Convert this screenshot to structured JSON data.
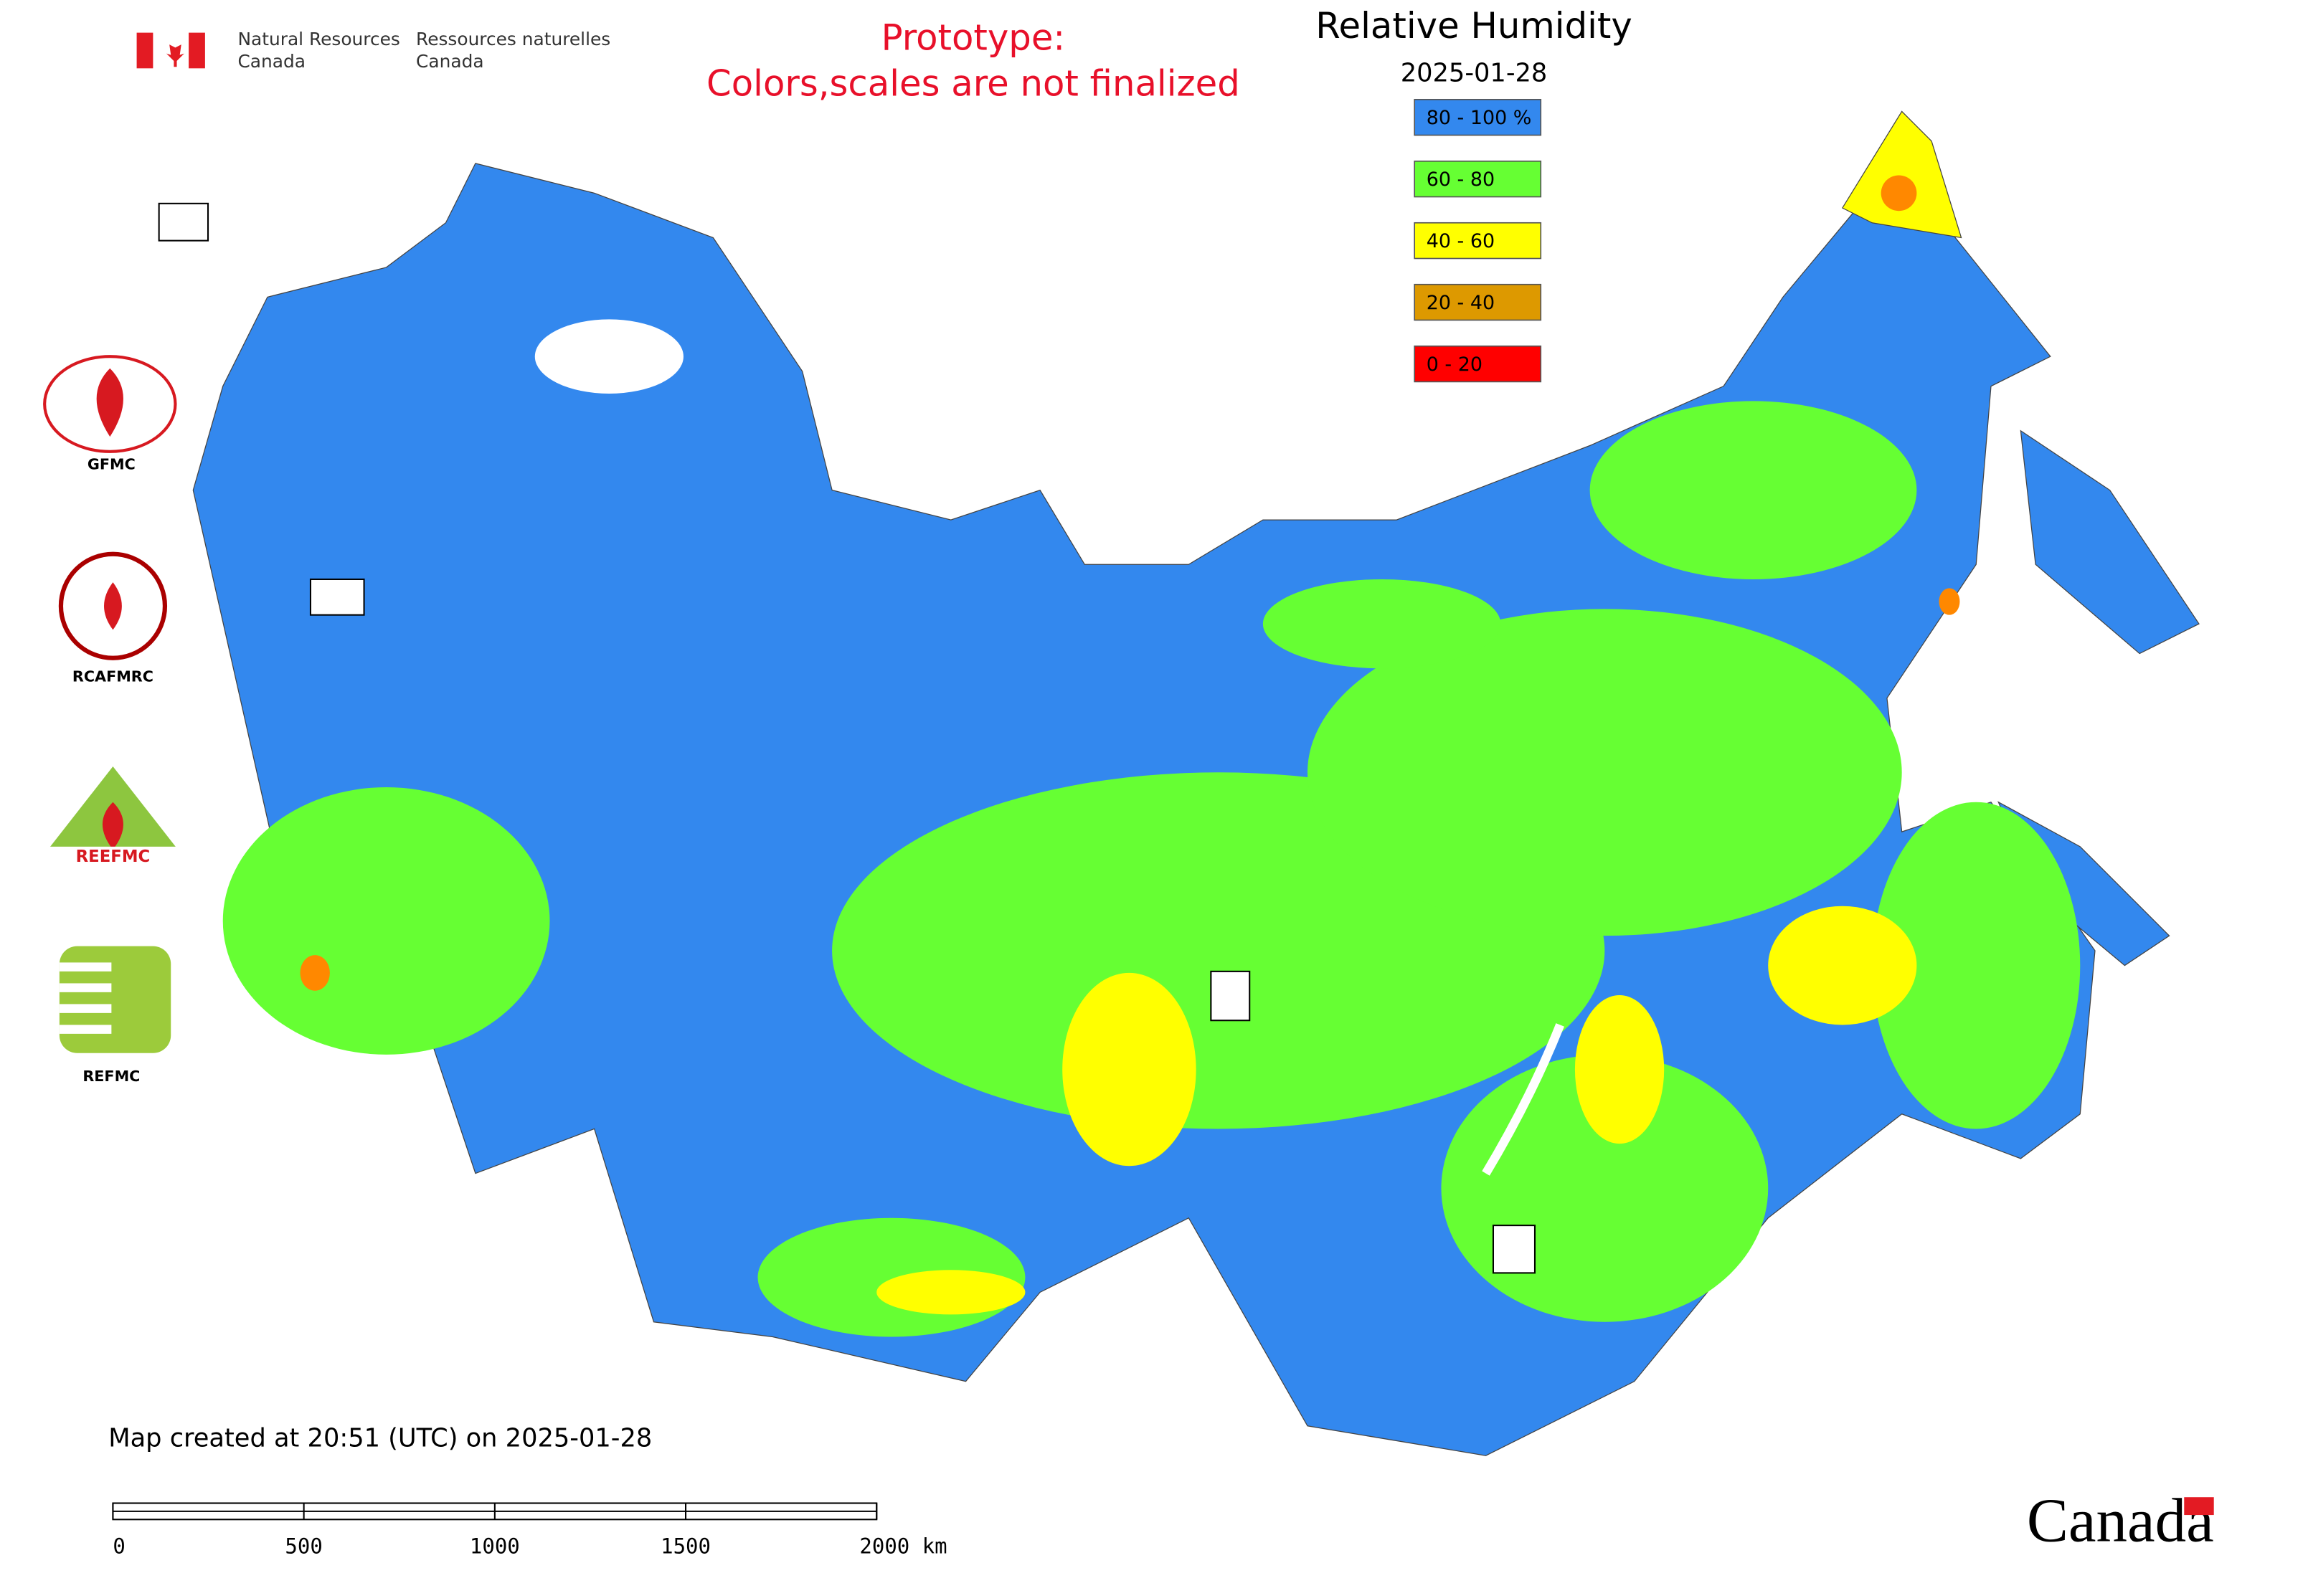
{
  "header": {
    "agency_en": [
      "Natural Resources",
      "Canada"
    ],
    "agency_fr": [
      "Ressources naturelles",
      "Canada"
    ],
    "notice": [
      "Prototype:",
      "Colors,scales are not finalized"
    ]
  },
  "map": {
    "title": "Relative Humidity",
    "date": "2025-01-28",
    "legend": [
      {
        "label": "80 - 100 %",
        "color": "#3388ee"
      },
      {
        "label": "60 - 80",
        "color": "#66ff33"
      },
      {
        "label": "40 - 60",
        "color": "#ffff00"
      },
      {
        "label": "20 - 40",
        "color": "#dd9900"
      },
      {
        "label": "0 - 20",
        "color": "#ff0000"
      }
    ]
  },
  "logos": [
    "GFMC",
    "RCAFMRC",
    "REFMC"
  ],
  "footer": {
    "created": "Map created at 20:51 (UTC) on 2025-01-28",
    "scale_labels": [
      "0",
      "500",
      "1000",
      "1500",
      "2000 km"
    ],
    "wordmark": "Canada"
  }
}
